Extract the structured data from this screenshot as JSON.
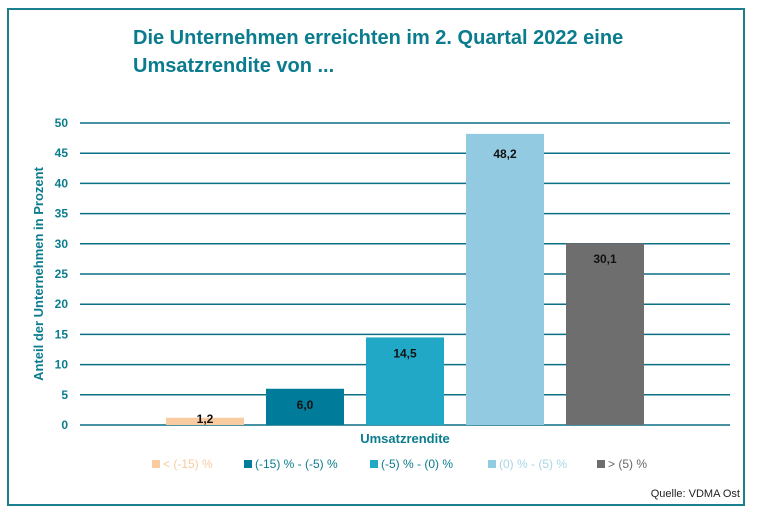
{
  "chart_data": {
    "type": "bar",
    "title": "Die Unternehmen erreichten im 2. Quartal 2022 eine Umsatzrendite von ...",
    "xlabel": "Umsatzrendite",
    "ylabel": "Anteil der Unternehmen in Prozent",
    "ylim": [
      0,
      50
    ],
    "yticks": [
      0,
      5,
      10,
      15,
      20,
      25,
      30,
      35,
      40,
      45,
      50
    ],
    "grid": true,
    "legend_position": "bottom",
    "categories": [
      "< (-15) %",
      "(-15) % - (-5) %",
      "(-5) % - (0) %",
      "(0) % - (5) %",
      "> (5) %"
    ],
    "values": [
      1.2,
      6.0,
      14.5,
      48.2,
      30.1
    ],
    "data_labels": [
      "1,2",
      "6,0",
      "14,5",
      "48,2",
      "30,1"
    ],
    "colors": [
      "#f8cba0",
      "#007b99",
      "#21a8c6",
      "#92cbe1",
      "#6e6e6e"
    ],
    "legend_text_colors": [
      "#f8cba0",
      "#0b7c8e",
      "#0b7c8e",
      "#a9d5e6",
      "#666666"
    ]
  },
  "source": "Quelle: VDMA Ost",
  "colors": {
    "accent": "#0b7c8e",
    "grid": "#0b6f85"
  }
}
